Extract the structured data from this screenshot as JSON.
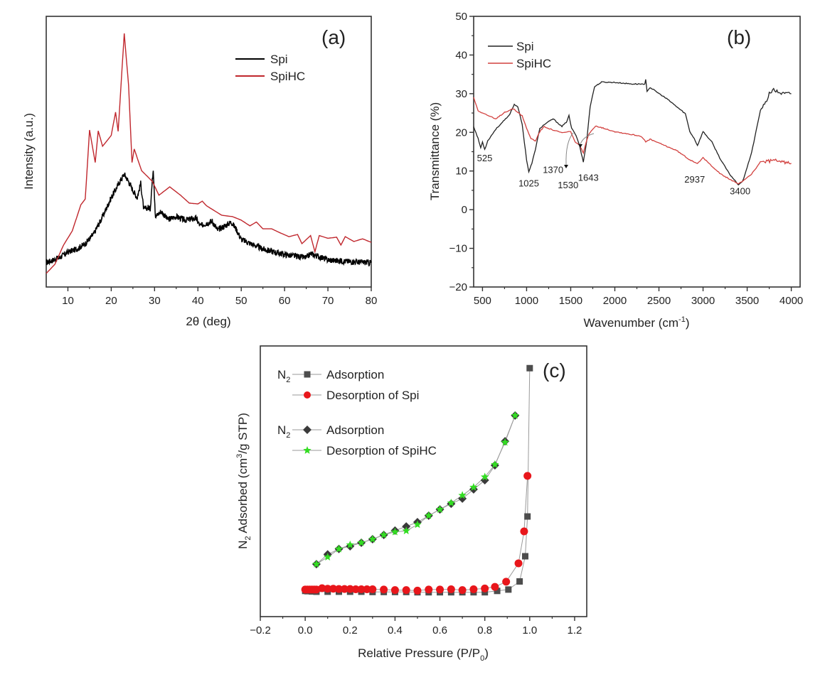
{
  "chart_data": [
    {
      "id": "a",
      "type": "line",
      "panel_label": "(a)",
      "title": "",
      "xlabel": "2θ (deg)",
      "ylabel": "Intensity (a.u.)",
      "xlim": [
        5,
        80
      ],
      "ylim": [
        0,
        100
      ],
      "x_ticks": [
        10,
        20,
        30,
        40,
        50,
        60,
        70,
        80
      ],
      "y_ticks": [],
      "grid": false,
      "legend_position": "top-right",
      "series": [
        {
          "name": "Spi",
          "color": "#000000",
          "x": [
            5,
            8,
            10,
            12,
            14,
            16,
            18,
            20,
            22,
            23,
            24,
            25,
            26,
            26.8,
            27.5,
            28.5,
            29,
            29.7,
            30.2,
            31.5,
            33,
            35,
            37,
            39.6,
            40.5,
            43.3,
            44.5,
            47.7,
            48.8,
            50,
            55,
            60,
            65,
            66,
            70,
            75,
            80
          ],
          "y": [
            9,
            10.8,
            12.9,
            14,
            16,
            19.7,
            26,
            33,
            39,
            41.7,
            39,
            35.7,
            33,
            38.3,
            28.6,
            29.4,
            28.9,
            44,
            26,
            28,
            25,
            26,
            24.7,
            25.4,
            22.6,
            24.4,
            21,
            24,
            21.5,
            17.6,
            14,
            12,
            10.8,
            12.3,
            10,
            9.4,
            9
          ]
        },
        {
          "name": "SpiHC",
          "color": "#c0272d",
          "x": [
            5,
            7,
            9,
            11,
            13,
            14,
            15,
            16.3,
            17,
            18,
            20,
            21,
            21.6,
            23,
            24,
            24.8,
            25.3,
            27,
            29.5,
            31,
            33.5,
            36,
            38,
            40,
            41,
            42,
            44,
            45.5,
            48,
            50,
            52,
            53.5,
            55,
            57,
            59,
            61,
            63,
            64,
            66,
            67,
            68,
            70,
            72,
            73,
            74,
            76,
            78,
            80
          ],
          "y": [
            5,
            8.4,
            15.5,
            20.7,
            30.4,
            32.5,
            58,
            46,
            57.7,
            52,
            56,
            64.6,
            57.5,
            93.7,
            74.5,
            46,
            51,
            43,
            39,
            33.9,
            37,
            33.9,
            31,
            30.7,
            31.7,
            30,
            28,
            26.5,
            26,
            24.7,
            22.6,
            24,
            21.5,
            21.5,
            20,
            18.6,
            19.4,
            16,
            19,
            13,
            19,
            18,
            18.4,
            15.5,
            18.6,
            16.8,
            17.8,
            16.5
          ]
        }
      ]
    },
    {
      "id": "b",
      "type": "line",
      "panel_label": "(b)",
      "title": "",
      "xlabel": "Wavenumber (cm",
      "xlabel_sup": "-1",
      "xlabel_end": ")",
      "ylabel": "Transmittance (%)",
      "xlim": [
        400,
        4100
      ],
      "ylim": [
        -20,
        50
      ],
      "x_ticks": [
        500,
        1000,
        1500,
        2000,
        2500,
        3000,
        3500,
        4000
      ],
      "y_ticks": [
        -20,
        -10,
        0,
        10,
        20,
        30,
        40,
        50
      ],
      "grid": false,
      "legend_position": "top-left",
      "annotations": [
        {
          "text": "525",
          "x": 525,
          "y": 12.5
        },
        {
          "text": "1025",
          "x": 1025,
          "y": 6
        },
        {
          "text": "1370",
          "x": 1300,
          "y": 9.5,
          "arrow": true
        },
        {
          "text": "1530",
          "x": 1470,
          "y": 5.5,
          "arrow": true
        },
        {
          "text": "1643",
          "x": 1700,
          "y": 7.5
        },
        {
          "text": "2937",
          "x": 2905,
          "y": 7
        },
        {
          "text": "3400",
          "x": 3420,
          "y": 4
        }
      ],
      "series": [
        {
          "name": "Spi",
          "color": "#222222",
          "x": [
            400,
            450,
            480,
            500,
            525,
            560,
            650,
            700,
            800,
            860,
            900,
            950,
            1000,
            1025,
            1060,
            1100,
            1150,
            1200,
            1300,
            1400,
            1450,
            1480,
            1510,
            1560,
            1600,
            1643,
            1680,
            1720,
            1770,
            1850,
            2000,
            2200,
            2340,
            2350,
            2365,
            2400,
            2600,
            2800,
            2850,
            2900,
            2937,
            3000,
            3100,
            3200,
            3300,
            3400,
            3450,
            3550,
            3650,
            3720,
            3750,
            3800,
            3900,
            4000
          ],
          "y": [
            21.5,
            18.4,
            16,
            17.5,
            15.6,
            17.8,
            20.8,
            22,
            24.3,
            27.2,
            26.7,
            22,
            12.9,
            9.8,
            12,
            15.6,
            21,
            22,
            23.5,
            21.5,
            22.6,
            24.3,
            21,
            19.3,
            16.6,
            12.3,
            17.5,
            26.7,
            31.8,
            33,
            32.9,
            32.5,
            32.5,
            33.6,
            30.7,
            31.6,
            28.5,
            24.8,
            20.2,
            18.4,
            16.6,
            20.2,
            17.5,
            12.9,
            9.2,
            6.5,
            7.4,
            14.7,
            25.7,
            27.9,
            30.2,
            30.9,
            30,
            30
          ]
        },
        {
          "name": "SpiHC",
          "color": "#d2413f",
          "x": [
            400,
            450,
            550,
            650,
            750,
            850,
            950,
            1000,
            1050,
            1100,
            1150,
            1200,
            1300,
            1400,
            1500,
            1550,
            1600,
            1643,
            1700,
            1780,
            2000,
            2300,
            2350,
            2400,
            2700,
            2850,
            2937,
            3000,
            3200,
            3400,
            3550,
            3650,
            3800,
            4000
          ],
          "y": [
            29,
            25.6,
            24.5,
            23.4,
            25.2,
            26.1,
            24.3,
            21,
            18.4,
            17.8,
            20.2,
            21.5,
            20.6,
            19.9,
            20.2,
            17.5,
            16.6,
            14.7,
            19.3,
            21.7,
            20.2,
            19,
            17.5,
            18.2,
            15.3,
            12.9,
            12,
            13.4,
            9.2,
            6.6,
            9.2,
            12.3,
            12.7,
            12
          ]
        }
      ]
    },
    {
      "id": "c",
      "type": "scatter",
      "panel_label": "(c)",
      "title": "",
      "xlabel": "Relative Pressure (P/P",
      "xlabel_sub": "0",
      "xlabel_end": ")",
      "ylabel": "N",
      "ylabel_sub": "2",
      "ylabel_mid": " Adsorbed (cm",
      "ylabel_sup": "3",
      "ylabel_end": "/g STP)",
      "xlim": [
        -0.2,
        1.254
      ],
      "ylim": [
        0,
        100
      ],
      "x_ticks": [
        -0.2,
        0.0,
        0.2,
        0.4,
        0.6,
        0.8,
        1.0,
        1.2
      ],
      "x_tick_labels": [
        "−0.2",
        "0.0",
        "0.2",
        "0.4",
        "0.6",
        "0.8",
        "1.0",
        "1.2"
      ],
      "y_ticks": [],
      "grid": false,
      "legend_position": "top-left",
      "legend_groups": [
        {
          "prefix": "N",
          "prefix_sub": "2",
          "entries": [
            "Adsorption",
            "Desorption of Spi"
          ]
        },
        {
          "prefix": "N",
          "prefix_sub": "2",
          "entries": [
            "Adsorption",
            "Desorption of SpiHC"
          ]
        }
      ],
      "series": [
        {
          "name": "Adsorption (Spi)",
          "marker": "square",
          "color": "#4d4d4d",
          "x": [
            0.0,
            0.01,
            0.03,
            0.05,
            0.1,
            0.15,
            0.2,
            0.25,
            0.3,
            0.35,
            0.4,
            0.45,
            0.5,
            0.55,
            0.6,
            0.65,
            0.7,
            0.75,
            0.8,
            0.855,
            0.905,
            0.955,
            0.98,
            0.99,
            1.0
          ],
          "y": [
            9.5,
            9.4,
            9.3,
            9.2,
            9.2,
            9.2,
            9.2,
            9.2,
            9.1,
            9.1,
            9.1,
            9.1,
            9.0,
            9.0,
            9.0,
            9.0,
            9.0,
            9.0,
            9.0,
            9.5,
            10,
            13,
            22.3,
            37,
            91.8
          ]
        },
        {
          "name": "Desorption of Spi",
          "marker": "circle",
          "color": "#e8161b",
          "x": [
            0.0,
            0.01,
            0.02,
            0.03,
            0.04,
            0.05,
            0.075,
            0.1,
            0.125,
            0.15,
            0.175,
            0.2,
            0.225,
            0.25,
            0.275,
            0.3,
            0.35,
            0.4,
            0.45,
            0.5,
            0.55,
            0.6,
            0.65,
            0.7,
            0.75,
            0.8,
            0.845,
            0.895,
            0.95,
            0.975,
            0.99
          ],
          "y": [
            10,
            10,
            10,
            10,
            10,
            10,
            10.5,
            10.3,
            10.3,
            10.2,
            10.2,
            10.2,
            10.1,
            10.1,
            10.1,
            10.1,
            10,
            9.8,
            9.8,
            9.6,
            10,
            10,
            10.1,
            9.8,
            10.1,
            10.4,
            11,
            12.9,
            19.7,
            31.5,
            52
          ]
        },
        {
          "name": "Adsorption (SpiHC)",
          "marker": "diamond",
          "color": "#3a3a3a",
          "x": [
            0.05,
            0.1,
            0.15,
            0.2,
            0.25,
            0.3,
            0.35,
            0.4,
            0.45,
            0.5,
            0.55,
            0.6,
            0.65,
            0.7,
            0.75,
            0.8,
            0.845,
            0.89,
            0.935
          ],
          "y": [
            19.4,
            23,
            25,
            26,
            27.3,
            28.6,
            30.2,
            31.8,
            33.3,
            34.9,
            37.3,
            39.6,
            41.7,
            43.6,
            47,
            50.4,
            55.9,
            64.8,
            74.3
          ]
        },
        {
          "name": "Desorption of SpiHC",
          "marker": "star",
          "color": "#33dd22",
          "x": [
            0.05,
            0.1,
            0.15,
            0.2,
            0.25,
            0.3,
            0.35,
            0.4,
            0.45,
            0.5,
            0.55,
            0.6,
            0.65,
            0.7,
            0.75,
            0.8,
            0.845,
            0.89,
            0.935
          ],
          "y": [
            19.4,
            22,
            25,
            26.5,
            27.3,
            28.6,
            30.2,
            31.3,
            31.7,
            34,
            37.3,
            39.6,
            42,
            44.8,
            47.8,
            51.6,
            56.2,
            64.4,
            74.3
          ]
        }
      ]
    }
  ]
}
